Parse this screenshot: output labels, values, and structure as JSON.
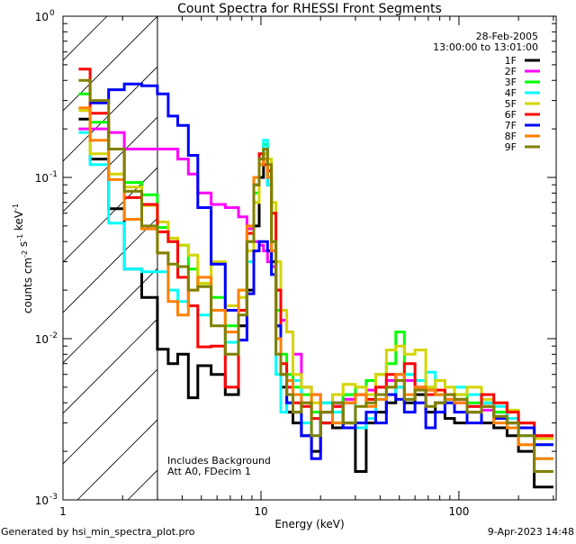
{
  "chart_data": {
    "type": "line",
    "title": "Count Spectra for RHESSI Front Segments",
    "xlabel": "Energy (keV)",
    "ylabel_parts": [
      {
        "text": "counts cm",
        "sup": "-2"
      },
      {
        "text": " s",
        "sup": "-1"
      },
      {
        "text": " keV",
        "sup": "-1"
      }
    ],
    "xscale": "log",
    "yscale": "log",
    "xlim": [
      1,
      310
    ],
    "ylim": [
      0.001,
      1
    ],
    "x_ticks": [
      {
        "value": 1,
        "label": "1"
      },
      {
        "value": 10,
        "label": "10"
      },
      {
        "value": 100,
        "label": "100"
      }
    ],
    "y_ticks": [
      {
        "value": 1,
        "base": "10",
        "exp": "0"
      },
      {
        "value": 0.1,
        "base": "10",
        "exp": "-1"
      },
      {
        "value": 0.01,
        "base": "10",
        "exp": "-2"
      },
      {
        "value": 0.001,
        "base": "10",
        "exp": "-3"
      }
    ],
    "hatched_region_keV": [
      1,
      3
    ],
    "legend_position": "top-right",
    "legend_header": [
      "28-Feb-2005",
      "13:00:00 to 13:01:00"
    ],
    "annotations": [
      "Includes Background",
      "Att A0, FDecim 1"
    ],
    "energy_bin_edges_keV": [
      1.2,
      1.37,
      1.7,
      2.04,
      2.5,
      3.0,
      3.4,
      3.8,
      4.3,
      4.8,
      5.6,
      6.6,
      7.7,
      8.5,
      9.2,
      9.8,
      10.3,
      10.8,
      11.3,
      11.9,
      12.6,
      13.5,
      14.5,
      16,
      18,
      20,
      23,
      26,
      30,
      34,
      38,
      43,
      48,
      53,
      60,
      68,
      76,
      85,
      95,
      110,
      130,
      150,
      175,
      200,
      240,
      300
    ],
    "series": [
      {
        "name": "1F",
        "color": "#000000",
        "values": [
          0.23,
          0.13,
          0.064,
          0.027,
          0.018,
          0.0086,
          0.007,
          0.008,
          0.0043,
          0.0068,
          0.006,
          0.0045,
          0.012,
          0.02,
          0.05,
          0.1,
          0.13,
          0.09,
          0.03,
          0.012,
          0.005,
          0.0035,
          0.003,
          0.0025,
          0.002,
          0.003,
          0.0028,
          0.003,
          0.0015,
          0.003,
          0.0035,
          0.004,
          0.005,
          0.004,
          0.0045,
          0.0035,
          0.004,
          0.0032,
          0.003,
          0.0035,
          0.003,
          0.0028,
          0.0025,
          0.002,
          0.0012
        ]
      },
      {
        "name": "2F",
        "color": "#ff00ff",
        "values": [
          0.2,
          0.2,
          0.19,
          0.15,
          0.15,
          0.15,
          0.15,
          0.13,
          0.105,
          0.08,
          0.068,
          0.065,
          0.057,
          0.048,
          0.04,
          0.038,
          0.035,
          0.03,
          0.028,
          0.02,
          0.013,
          0.011,
          0.008,
          0.005,
          0.0045,
          0.004,
          0.0038,
          0.0042,
          0.0045,
          0.0048,
          0.005,
          0.0055,
          0.006,
          0.0055,
          0.005,
          0.0048,
          0.0045,
          0.0042,
          0.004,
          0.0038,
          0.0036,
          0.0035,
          0.0032,
          0.003,
          0.0025
        ]
      },
      {
        "name": "3F",
        "color": "#00ff00",
        "values": [
          0.33,
          0.22,
          0.15,
          0.093,
          0.078,
          0.049,
          0.04,
          0.038,
          0.027,
          0.022,
          0.018,
          0.012,
          0.02,
          0.04,
          0.08,
          0.13,
          0.16,
          0.1,
          0.04,
          0.015,
          0.008,
          0.006,
          0.005,
          0.0045,
          0.0035,
          0.004,
          0.003,
          0.0045,
          0.005,
          0.0055,
          0.006,
          0.007,
          0.011,
          0.006,
          0.0055,
          0.005,
          0.0045,
          0.0042,
          0.0045,
          0.004,
          0.004,
          0.0035,
          0.003,
          0.0028,
          0.0022
        ]
      },
      {
        "name": "4F",
        "color": "#00ffff",
        "values": [
          0.19,
          0.12,
          0.052,
          0.027,
          0.026,
          0.026,
          0.02,
          0.017,
          0.016,
          0.014,
          0.015,
          0.0095,
          0.015,
          0.03,
          0.07,
          0.14,
          0.17,
          0.09,
          0.025,
          0.006,
          0.0035,
          0.004,
          0.0055,
          0.003,
          0.0025,
          0.004,
          0.0035,
          0.004,
          0.0028,
          0.0032,
          0.0042,
          0.0045,
          0.005,
          0.006,
          0.0055,
          0.0062,
          0.0045,
          0.004,
          0.005,
          0.0045,
          0.004,
          0.0038,
          0.0032,
          0.0025,
          0.0018
        ]
      },
      {
        "name": "5F",
        "color": "#d4d400",
        "values": [
          0.26,
          0.14,
          0.105,
          0.087,
          0.067,
          0.053,
          0.042,
          0.038,
          0.033,
          0.022,
          0.03,
          0.016,
          0.018,
          0.035,
          0.07,
          0.12,
          0.14,
          0.13,
          0.07,
          0.03,
          0.015,
          0.011,
          0.006,
          0.005,
          0.004,
          0.0035,
          0.0045,
          0.0052,
          0.005,
          0.0045,
          0.006,
          0.0085,
          0.009,
          0.008,
          0.0085,
          0.005,
          0.0055,
          0.005,
          0.0045,
          0.005,
          0.0042,
          0.004,
          0.0036,
          0.003,
          0.0024
        ]
      },
      {
        "name": "6F",
        "color": "#ff0000",
        "values": [
          0.47,
          0.25,
          0.15,
          0.075,
          0.068,
          0.046,
          0.04,
          0.024,
          0.016,
          0.0089,
          0.009,
          0.005,
          0.015,
          0.045,
          0.09,
          0.14,
          0.12,
          0.11,
          0.06,
          0.02,
          0.007,
          0.005,
          0.004,
          0.0038,
          0.0032,
          0.003,
          0.0038,
          0.004,
          0.0045,
          0.0042,
          0.005,
          0.006,
          0.0055,
          0.007,
          0.005,
          0.0045,
          0.0048,
          0.0045,
          0.0042,
          0.0038,
          0.0045,
          0.004,
          0.0035,
          0.003,
          0.0025
        ]
      },
      {
        "name": "7F",
        "color": "#0000ff",
        "values": [
          null,
          0.29,
          0.35,
          0.38,
          0.37,
          0.33,
          0.24,
          0.21,
          0.137,
          0.065,
          0.029,
          0.015,
          0.0098,
          0.019,
          0.035,
          0.04,
          0.04,
          0.035,
          0.025,
          0.012,
          0.006,
          0.004,
          0.0035,
          0.0025,
          0.0018,
          0.0035,
          0.004,
          0.0028,
          0.003,
          0.0035,
          0.003,
          0.0045,
          0.0042,
          0.0035,
          0.004,
          0.0028,
          0.0035,
          0.004,
          0.0035,
          0.003,
          0.0038,
          0.0032,
          0.003,
          0.0028,
          0.0022
        ]
      },
      {
        "name": "8F",
        "color": "#ff8000",
        "values": [
          0.27,
          0.17,
          0.097,
          0.055,
          0.048,
          0.034,
          0.017,
          0.014,
          0.02,
          0.024,
          0.015,
          0.011,
          0.02,
          0.05,
          0.1,
          0.12,
          0.13,
          0.1,
          0.035,
          0.01,
          0.006,
          0.0055,
          0.0045,
          0.004,
          0.0045,
          0.0035,
          0.003,
          0.004,
          0.0045,
          0.0038,
          0.0042,
          0.005,
          0.006,
          0.0045,
          0.005,
          0.0048,
          0.0045,
          0.0042,
          0.004,
          0.0035,
          0.0038,
          0.003,
          0.0028,
          0.0022,
          0.0018
        ]
      },
      {
        "name": "9F",
        "color": "#808000",
        "values": [
          0.4,
          0.3,
          0.15,
          0.082,
          0.05,
          0.034,
          0.029,
          0.028,
          0.02,
          0.021,
          0.012,
          0.008,
          0.014,
          0.04,
          0.09,
          0.13,
          0.15,
          0.12,
          0.04,
          0.008,
          0.006,
          0.0045,
          0.0035,
          0.004,
          0.0025,
          0.0035,
          0.004,
          0.003,
          0.0038,
          0.004,
          0.0045,
          0.005,
          0.0055,
          0.0042,
          0.0048,
          0.0038,
          0.004,
          0.0045,
          0.0042,
          0.0035,
          0.0038,
          0.0033,
          0.003,
          0.0025,
          0.0015
        ]
      }
    ]
  },
  "footer": {
    "generated_by": "Generated by hsi_min_spectra_plot.pro",
    "date": "9-Apr-2023 14:48"
  }
}
